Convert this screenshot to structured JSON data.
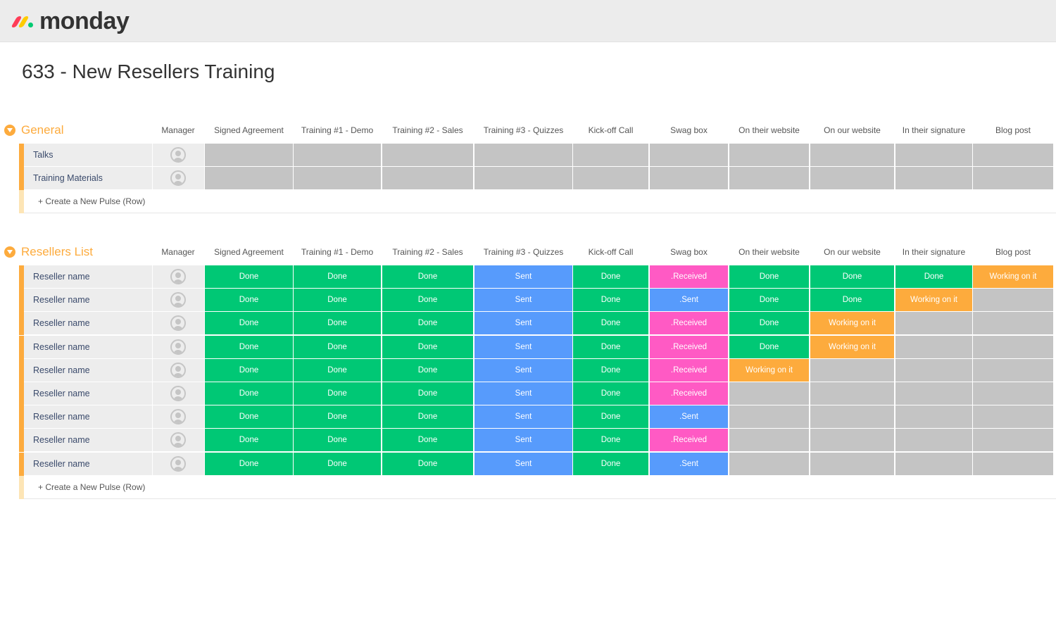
{
  "app": {
    "logo_text": "monday"
  },
  "board": {
    "title": "633 - New Resellers Training"
  },
  "columns": [
    "Manager",
    "Signed Agreement",
    "Training #1 - Demo",
    "Training #2 - Sales",
    "Training #3 - Quizzes",
    "Kick-off Call",
    "Swag box",
    "On their website",
    "On our website",
    "In their signature",
    "Blog post"
  ],
  "colors": {
    "done": "#00c875",
    "sent": "#579bfc",
    "received": "#ff5ac4",
    "working": "#fdab3d",
    "empty": "#c4c4c4",
    "accent": "#fdab3d"
  },
  "groups": [
    {
      "title": "General",
      "add_label": "+ Create a New Pulse (Row)",
      "rows": [
        {
          "name": "Talks",
          "cells": [
            "",
            "",
            "",
            "",
            "",
            "",
            "",
            "",
            "",
            ""
          ]
        },
        {
          "name": "Training Materials",
          "cells": [
            "",
            "",
            "",
            "",
            "",
            "",
            "",
            "",
            "",
            ""
          ]
        }
      ]
    },
    {
      "title": "Resellers List",
      "add_label": "+ Create a New Pulse (Row)",
      "rows": [
        {
          "name": "Reseller name",
          "cells": [
            "Done",
            "Done",
            "Done",
            "Sent",
            "Done",
            ".Received",
            "Done",
            "Done",
            "Done",
            "Working on it"
          ]
        },
        {
          "name": "Reseller name",
          "cells": [
            "Done",
            "Done",
            "Done",
            "Sent",
            "Done",
            ".Sent",
            "Done",
            "Done",
            "Working on it",
            ""
          ]
        },
        {
          "name": "Reseller name",
          "cells": [
            "Done",
            "Done",
            "Done",
            "Sent",
            "Done",
            ".Received",
            "Done",
            "Working on it",
            "",
            ""
          ]
        },
        {
          "name": "Reseller name",
          "cells": [
            "Done",
            "Done",
            "Done",
            "Sent",
            "Done",
            ".Received",
            "Done",
            "Working on it",
            "",
            ""
          ]
        },
        {
          "name": "Reseller name",
          "cells": [
            "Done",
            "Done",
            "Done",
            "Sent",
            "Done",
            ".Received",
            "Working on it",
            "",
            "",
            ""
          ]
        },
        {
          "name": "Reseller name",
          "cells": [
            "Done",
            "Done",
            "Done",
            "Sent",
            "Done",
            ".Received",
            "",
            "",
            "",
            ""
          ]
        },
        {
          "name": "Reseller name",
          "cells": [
            "Done",
            "Done",
            "Done",
            "Sent",
            "Done",
            ".Sent",
            "",
            "",
            "",
            ""
          ]
        },
        {
          "name": "Reseller name",
          "cells": [
            "Done",
            "Done",
            "Done",
            "Sent",
            "Done",
            ".Received",
            "",
            "",
            "",
            ""
          ]
        },
        {
          "name": "Reseller name",
          "cells": [
            "Done",
            "Done",
            "Done",
            "Sent",
            "Done",
            ".Sent",
            "",
            "",
            "",
            ""
          ]
        }
      ]
    }
  ]
}
